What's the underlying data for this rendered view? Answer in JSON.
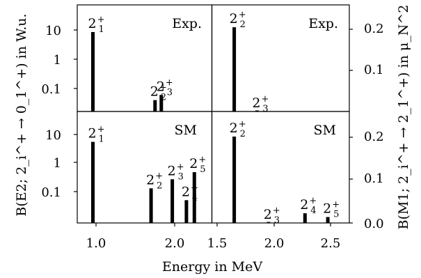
{
  "chart_data": {
    "type": "bar",
    "xlabel": "Energy in MeV",
    "ylabel_left": "B(E2; 2_i^+ → 0_1^+) in W.u.",
    "ylabel_right": "B(M1; 2_i^+ → 2_1^+) in μ_N^2",
    "yticks_left": [
      "10",
      "1",
      "0.1"
    ],
    "yticks_right": [
      "0.2",
      "0.1",
      "0.0"
    ],
    "panels": [
      {
        "id": "e2-exp",
        "label": "Exp.",
        "quantity": "B(E2)",
        "yscale": "log",
        "ylim": [
          0.011,
          60
        ],
        "xlim": [
          0.8,
          2.35
        ],
        "bars": [
          {
            "x": 0.96,
            "y": 8.5,
            "label": "2",
            "sub": "1"
          },
          {
            "x": 1.75,
            "y": 0.04,
            "label": "2",
            "sub": "2"
          },
          {
            "x": 1.83,
            "y": 0.06,
            "label": "2",
            "sub": "3"
          }
        ]
      },
      {
        "id": "m1-exp",
        "label": "Exp.",
        "quantity": "B(M1)",
        "yscale": "linear",
        "ylim": [
          0.0,
          0.24
        ],
        "xlim": [
          1.5,
          2.7
        ],
        "bars": [
          {
            "x": 1.65,
            "y": 0.205,
            "label": "2",
            "sub": "2"
          },
          {
            "x": 1.85,
            "y": 0.0,
            "label": "2",
            "sub": "3"
          }
        ]
      },
      {
        "id": "e2-sm",
        "label": "SM",
        "quantity": "B(E2)",
        "yscale": "log",
        "ylim": [
          0.011,
          60
        ],
        "xlim": [
          0.8,
          2.35
        ],
        "bars": [
          {
            "x": 0.96,
            "y": 5.5,
            "label": "2",
            "sub": "1"
          },
          {
            "x": 1.7,
            "y": 0.13,
            "label": "2",
            "sub": "2"
          },
          {
            "x": 1.97,
            "y": 0.27,
            "label": "2",
            "sub": "3"
          },
          {
            "x": 2.15,
            "y": 0.05,
            "label": "2",
            "sub": "4"
          },
          {
            "x": 2.25,
            "y": 0.48,
            "label": "2",
            "sub": "5"
          }
        ]
      },
      {
        "id": "m1-sm",
        "label": "SM",
        "quantity": "B(M1)",
        "yscale": "linear",
        "ylim": [
          0.0,
          0.24
        ],
        "xlim": [
          1.5,
          2.7
        ],
        "bars": [
          {
            "x": 1.65,
            "y": 0.205,
            "label": "2",
            "sub": "2"
          },
          {
            "x": 1.95,
            "y": 0.001,
            "label": "2",
            "sub": "3"
          },
          {
            "x": 2.27,
            "y": 0.023,
            "label": "2",
            "sub": "4"
          },
          {
            "x": 2.47,
            "y": 0.014,
            "label": "2",
            "sub": "5"
          }
        ]
      }
    ],
    "xticks": {
      "left": [
        "1.0",
        "2.0"
      ],
      "right": [
        "1.5",
        "2.0",
        "2.5"
      ]
    }
  }
}
